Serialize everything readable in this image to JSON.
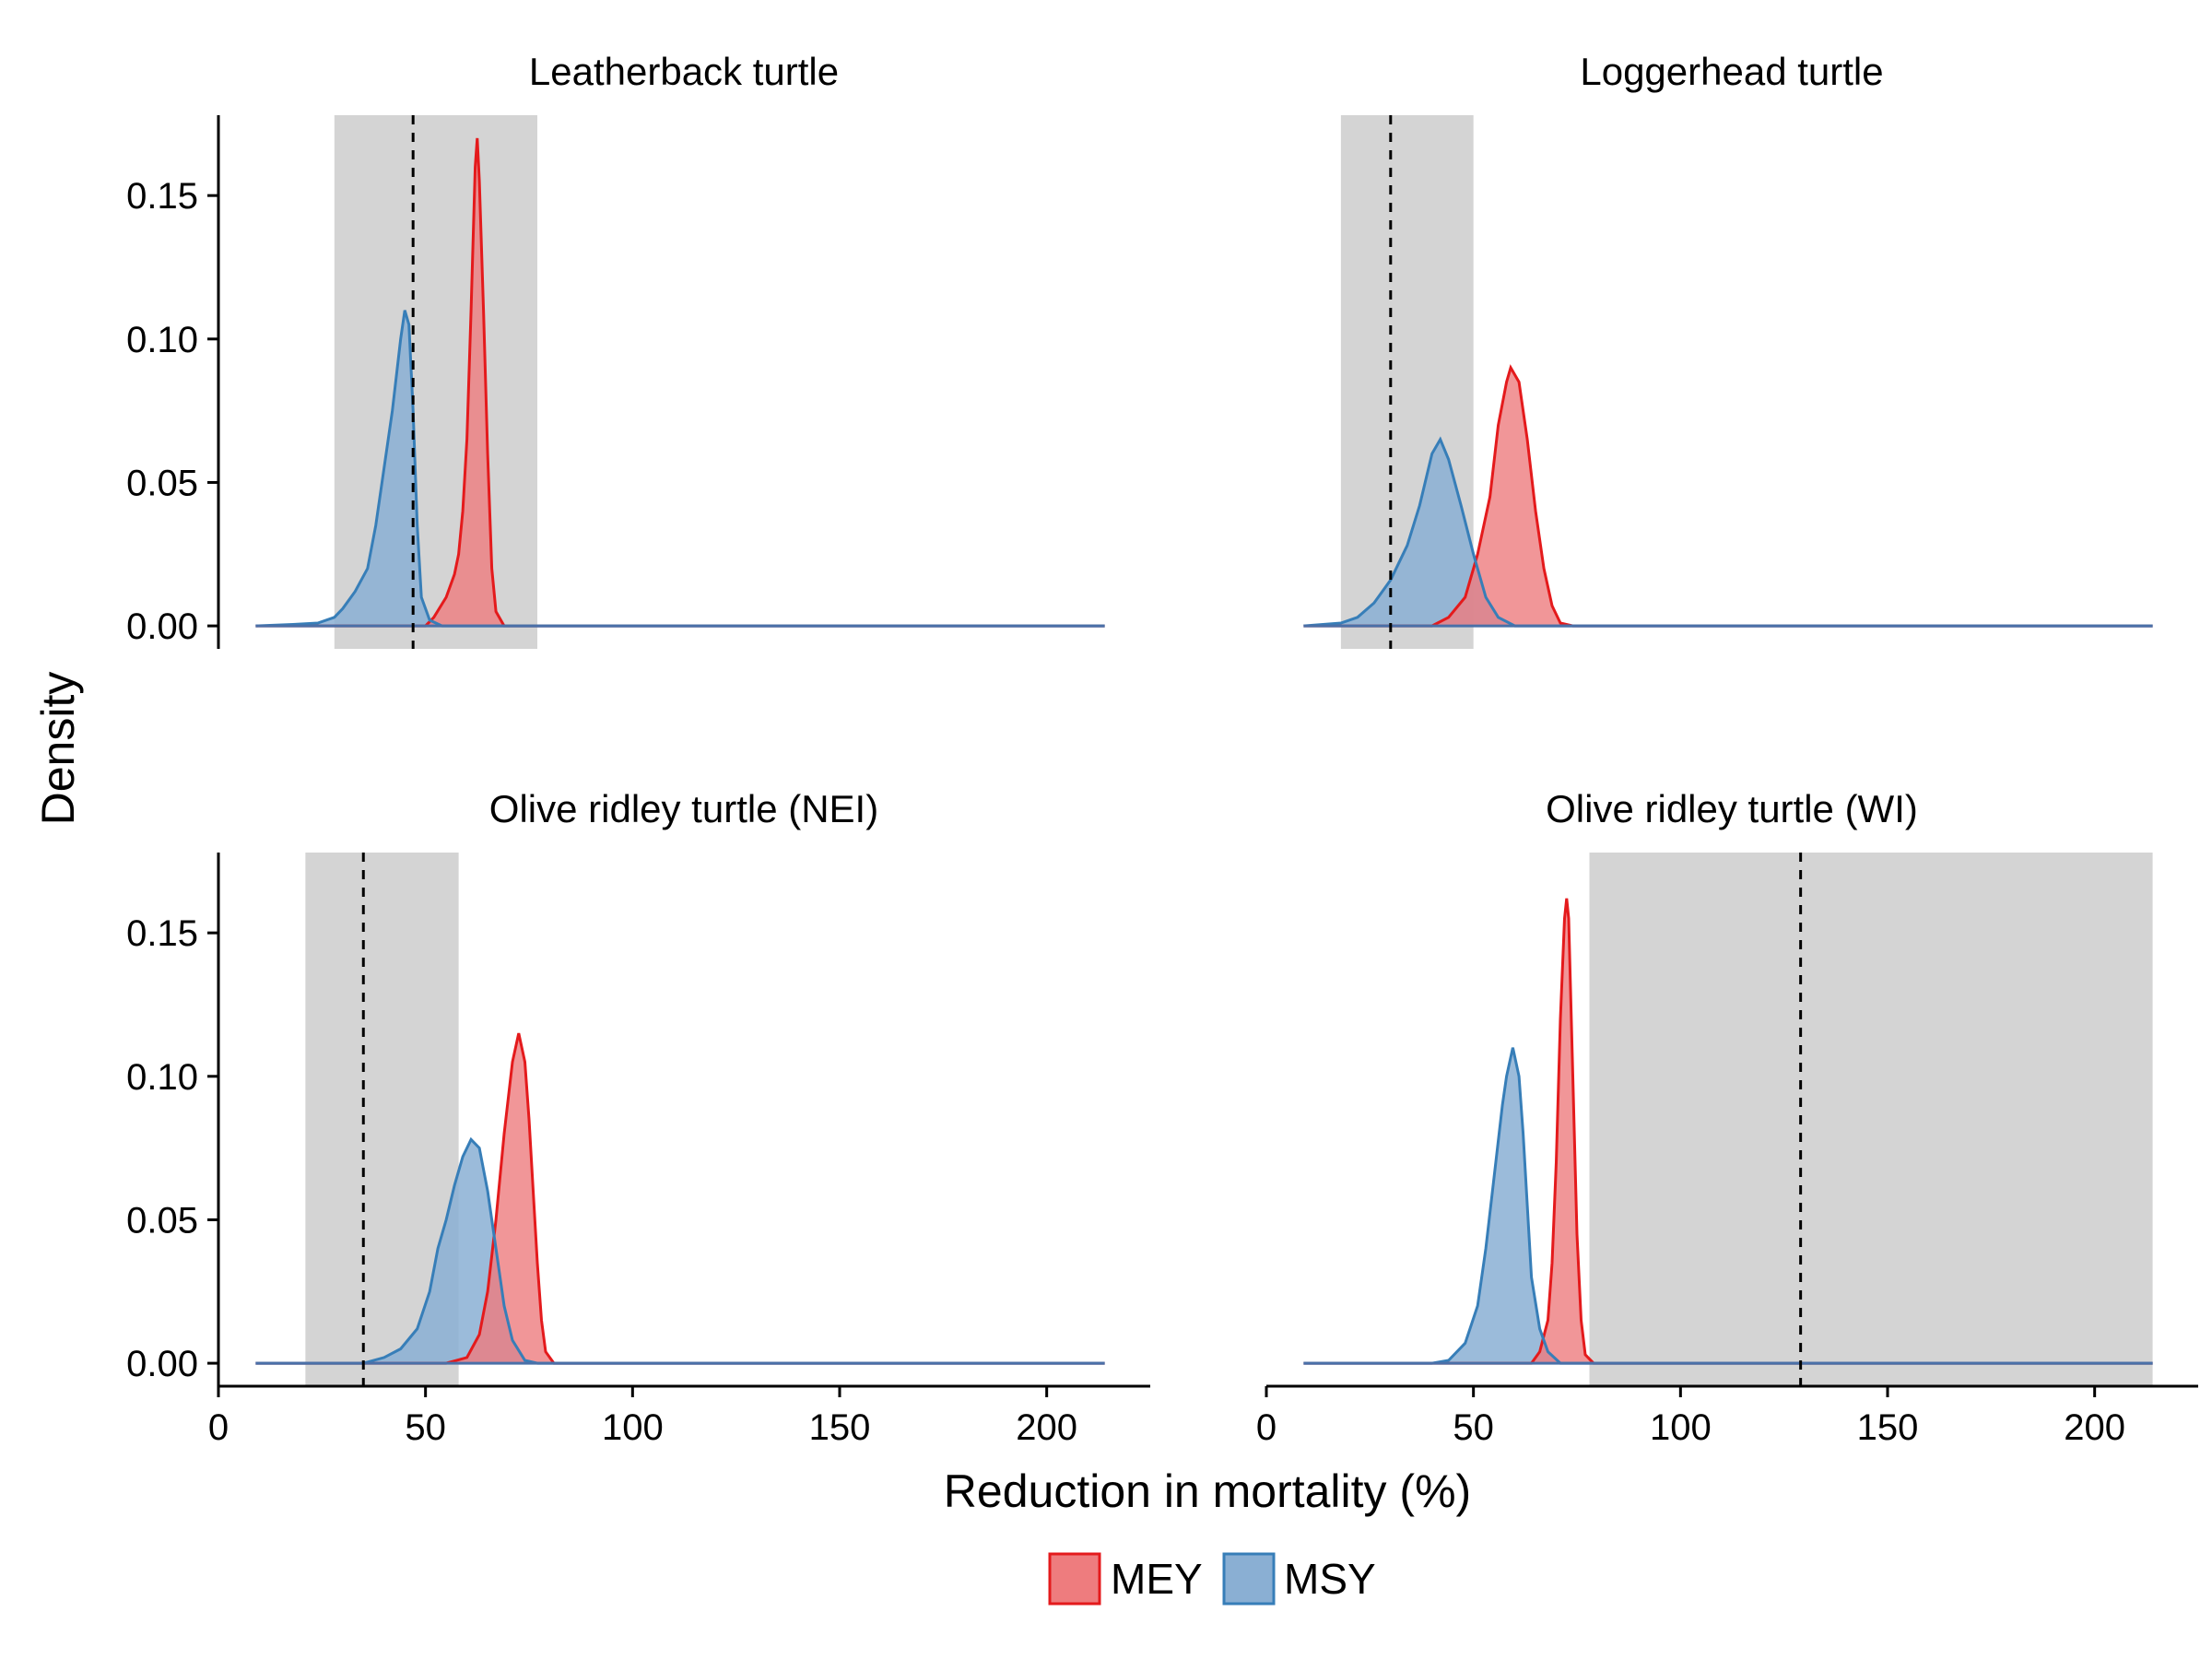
{
  "chart_data": {
    "type": "area",
    "xlabel": "Reduction in mortality (%)",
    "ylabel": "Density",
    "xlim": [
      0,
      225
    ],
    "ylim": [
      -0.008,
      0.178
    ],
    "x_ticks": [
      0,
      50,
      100,
      150,
      200
    ],
    "x_tick_labels": [
      "0",
      "50",
      "100",
      "150",
      "200"
    ],
    "y_ticks": [
      0,
      0.05,
      0.1,
      0.15
    ],
    "y_tick_labels": [
      "0.00",
      "0.05",
      "0.10",
      "0.15"
    ],
    "x_domain": [
      9,
      214
    ],
    "legend": {
      "position": "bottom",
      "entries": [
        {
          "label": "MEY",
          "fill": "#ee7c7e",
          "stroke": "#e41a1c"
        },
        {
          "label": "MSY",
          "fill": "#8aafd3",
          "stroke": "#377eb8"
        }
      ]
    },
    "colors": {
      "MEY_fill": "#ee7c7e",
      "MEY_line": "#e41a1c",
      "MSY_fill": "#8aafd3",
      "MSY_line": "#377eb8",
      "band": "#d4d4d4",
      "baseline": "#4a70a8"
    },
    "panels": [
      {
        "title": "Leatherback turtle",
        "band": [
          28,
          77
        ],
        "dashed_x": 47,
        "series": [
          {
            "name": "MSY",
            "points": [
              [
                9,
                0
              ],
              [
                18,
                0.0005
              ],
              [
                24,
                0.001
              ],
              [
                28,
                0.003
              ],
              [
                30,
                0.006
              ],
              [
                33,
                0.012
              ],
              [
                36,
                0.02
              ],
              [
                38,
                0.035
              ],
              [
                40,
                0.055
              ],
              [
                42,
                0.075
              ],
              [
                44,
                0.1
              ],
              [
                45,
                0.11
              ],
              [
                46,
                0.105
              ],
              [
                47,
                0.075
              ],
              [
                48,
                0.035
              ],
              [
                49,
                0.01
              ],
              [
                51,
                0.002
              ],
              [
                54,
                0
              ],
              [
                214,
                0
              ]
            ]
          },
          {
            "name": "MEY",
            "points": [
              [
                9,
                0
              ],
              [
                50,
                0
              ],
              [
                52,
                0.003
              ],
              [
                55,
                0.01
              ],
              [
                57,
                0.018
              ],
              [
                58,
                0.025
              ],
              [
                59,
                0.04
              ],
              [
                60,
                0.065
              ],
              [
                61,
                0.11
              ],
              [
                62,
                0.16
              ],
              [
                62.5,
                0.17
              ],
              [
                63,
                0.155
              ],
              [
                64,
                0.11
              ],
              [
                65,
                0.06
              ],
              [
                66,
                0.02
              ],
              [
                67,
                0.005
              ],
              [
                69,
                0
              ],
              [
                214,
                0
              ]
            ]
          }
        ]
      },
      {
        "title": "Loggerhead turtle",
        "band": [
          18,
          50
        ],
        "dashed_x": 30,
        "series": [
          {
            "name": "MSY",
            "points": [
              [
                9,
                0
              ],
              [
                18,
                0.001
              ],
              [
                22,
                0.003
              ],
              [
                26,
                0.008
              ],
              [
                30,
                0.016
              ],
              [
                34,
                0.028
              ],
              [
                37,
                0.042
              ],
              [
                40,
                0.06
              ],
              [
                42,
                0.065
              ],
              [
                44,
                0.058
              ],
              [
                47,
                0.042
              ],
              [
                50,
                0.025
              ],
              [
                53,
                0.01
              ],
              [
                56,
                0.003
              ],
              [
                60,
                0
              ],
              [
                214,
                0
              ]
            ]
          },
          {
            "name": "MEY",
            "points": [
              [
                9,
                0
              ],
              [
                40,
                0
              ],
              [
                44,
                0.003
              ],
              [
                48,
                0.01
              ],
              [
                51,
                0.025
              ],
              [
                54,
                0.045
              ],
              [
                56,
                0.07
              ],
              [
                58,
                0.085
              ],
              [
                59,
                0.09
              ],
              [
                61,
                0.085
              ],
              [
                63,
                0.065
              ],
              [
                65,
                0.04
              ],
              [
                67,
                0.02
              ],
              [
                69,
                0.007
              ],
              [
                71,
                0.001
              ],
              [
                74,
                0
              ],
              [
                214,
                0
              ]
            ]
          }
        ]
      },
      {
        "title": "Olive ridley turtle (NEI)",
        "band": [
          21,
          58
        ],
        "dashed_x": 35,
        "series": [
          {
            "name": "MSY",
            "points": [
              [
                9,
                0
              ],
              [
                35,
                0
              ],
              [
                40,
                0.002
              ],
              [
                44,
                0.005
              ],
              [
                48,
                0.012
              ],
              [
                51,
                0.025
              ],
              [
                53,
                0.04
              ],
              [
                55,
                0.05
              ],
              [
                57,
                0.062
              ],
              [
                59,
                0.072
              ],
              [
                61,
                0.078
              ],
              [
                63,
                0.075
              ],
              [
                65,
                0.06
              ],
              [
                67,
                0.04
              ],
              [
                69,
                0.02
              ],
              [
                71,
                0.008
              ],
              [
                74,
                0.001
              ],
              [
                77,
                0
              ],
              [
                214,
                0
              ]
            ]
          },
          {
            "name": "MEY",
            "points": [
              [
                9,
                0
              ],
              [
                55,
                0
              ],
              [
                60,
                0.002
              ],
              [
                63,
                0.01
              ],
              [
                65,
                0.025
              ],
              [
                67,
                0.05
              ],
              [
                69,
                0.08
              ],
              [
                71,
                0.105
              ],
              [
                72.5,
                0.115
              ],
              [
                74,
                0.105
              ],
              [
                75,
                0.085
              ],
              [
                76,
                0.06
              ],
              [
                77,
                0.035
              ],
              [
                78,
                0.015
              ],
              [
                79,
                0.004
              ],
              [
                81,
                0
              ],
              [
                214,
                0
              ]
            ]
          }
        ]
      },
      {
        "title": "Olive ridley turtle (WI)",
        "band": [
          78,
          214
        ],
        "dashed_x": 129,
        "series": [
          {
            "name": "MSY",
            "points": [
              [
                9,
                0
              ],
              [
                40,
                0
              ],
              [
                44,
                0.001
              ],
              [
                48,
                0.007
              ],
              [
                51,
                0.02
              ],
              [
                53,
                0.04
              ],
              [
                55,
                0.065
              ],
              [
                57,
                0.09
              ],
              [
                58,
                0.1
              ],
              [
                59.5,
                0.11
              ],
              [
                61,
                0.1
              ],
              [
                62,
                0.08
              ],
              [
                63,
                0.055
              ],
              [
                64,
                0.03
              ],
              [
                66,
                0.012
              ],
              [
                68,
                0.004
              ],
              [
                71,
                0
              ],
              [
                214,
                0
              ]
            ]
          },
          {
            "name": "MEY",
            "points": [
              [
                9,
                0
              ],
              [
                64,
                0
              ],
              [
                66,
                0.004
              ],
              [
                68,
                0.015
              ],
              [
                69,
                0.035
              ],
              [
                70,
                0.07
              ],
              [
                71,
                0.12
              ],
              [
                72,
                0.155
              ],
              [
                72.5,
                0.162
              ],
              [
                73,
                0.155
              ],
              [
                74,
                0.1
              ],
              [
                75,
                0.045
              ],
              [
                76,
                0.015
              ],
              [
                77,
                0.003
              ],
              [
                79,
                0
              ],
              [
                214,
                0
              ]
            ]
          }
        ]
      }
    ]
  }
}
